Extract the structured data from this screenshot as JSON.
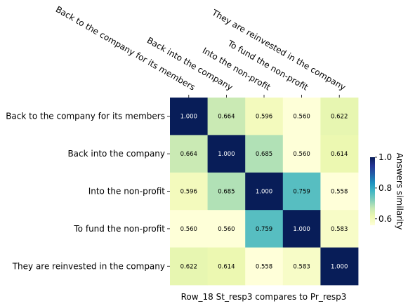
{
  "chart_data": {
    "type": "heatmap",
    "rows": [
      "Back to the company for its members",
      "Back into the company",
      "Into the non-profit",
      "To fund the non-profit",
      "They are reinvested in the company"
    ],
    "columns": [
      "Back to the company for its members",
      "Back into the company",
      "Into the non-profit",
      "To fund the non-profit",
      "They are reinvested in the company"
    ],
    "values": [
      [
        1.0,
        0.664,
        0.596,
        0.56,
        0.622
      ],
      [
        0.664,
        1.0,
        0.685,
        0.56,
        0.614
      ],
      [
        0.596,
        0.685,
        1.0,
        0.759,
        0.558
      ],
      [
        0.56,
        0.56,
        0.759,
        1.0,
        0.583
      ],
      [
        0.622,
        0.614,
        0.558,
        0.583,
        1.0
      ]
    ],
    "cell_labels": [
      [
        "1.000",
        "0.664",
        "0.596",
        "0.560",
        "0.622"
      ],
      [
        "0.664",
        "1.000",
        "0.685",
        "0.560",
        "0.614"
      ],
      [
        "0.596",
        "0.685",
        "1.000",
        "0.759",
        "0.558"
      ],
      [
        "0.560",
        "0.560",
        "0.759",
        "1.000",
        "0.583"
      ],
      [
        "0.622",
        "0.614",
        "0.558",
        "0.583",
        "1.000"
      ]
    ],
    "xlabel": "Row_18 St_resp3 compares to Pr_resp3",
    "colorbar": {
      "label": "Answers similarity",
      "colormap": "YlGnBu",
      "range": [
        0.558,
        1.0
      ],
      "ticks": [
        0.6,
        0.8,
        1.0
      ],
      "tick_labels": [
        "0.6",
        "0.8",
        "1.0"
      ]
    },
    "column_labels_rotation": "rotated -30°, above",
    "grid": false
  }
}
